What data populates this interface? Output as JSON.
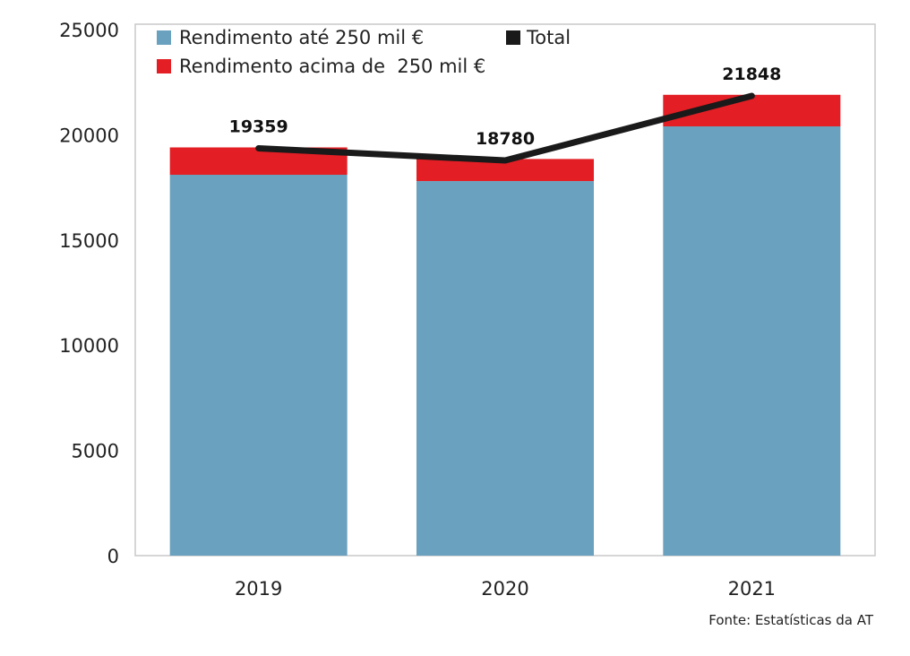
{
  "chart_data": {
    "type": "bar",
    "stacked": true,
    "categories": [
      "2019",
      "2020",
      "2021"
    ],
    "series": [
      {
        "name": "Rendimento até 250 mil €",
        "color": "#6aa1be",
        "values": [
          18100,
          17800,
          20400
        ]
      },
      {
        "name": "Rendimento acima de  250 mil €",
        "color": "#e31e24",
        "values": [
          1300,
          1050,
          1500
        ]
      }
    ],
    "line_series": {
      "name": "Total",
      "color": "#1a1a1a",
      "values": [
        19359,
        18780,
        21848
      ]
    },
    "data_labels": [
      "19359",
      "18780",
      "21848"
    ],
    "yticks": [
      "0",
      "5000",
      "10000",
      "15000",
      "20000",
      "25000"
    ],
    "ylim": [
      0,
      25000
    ],
    "title": "",
    "xlabel": "",
    "ylabel": "",
    "grid": false,
    "legend_position": "top-left",
    "source": "Fonte: Estatísticas da AT"
  }
}
